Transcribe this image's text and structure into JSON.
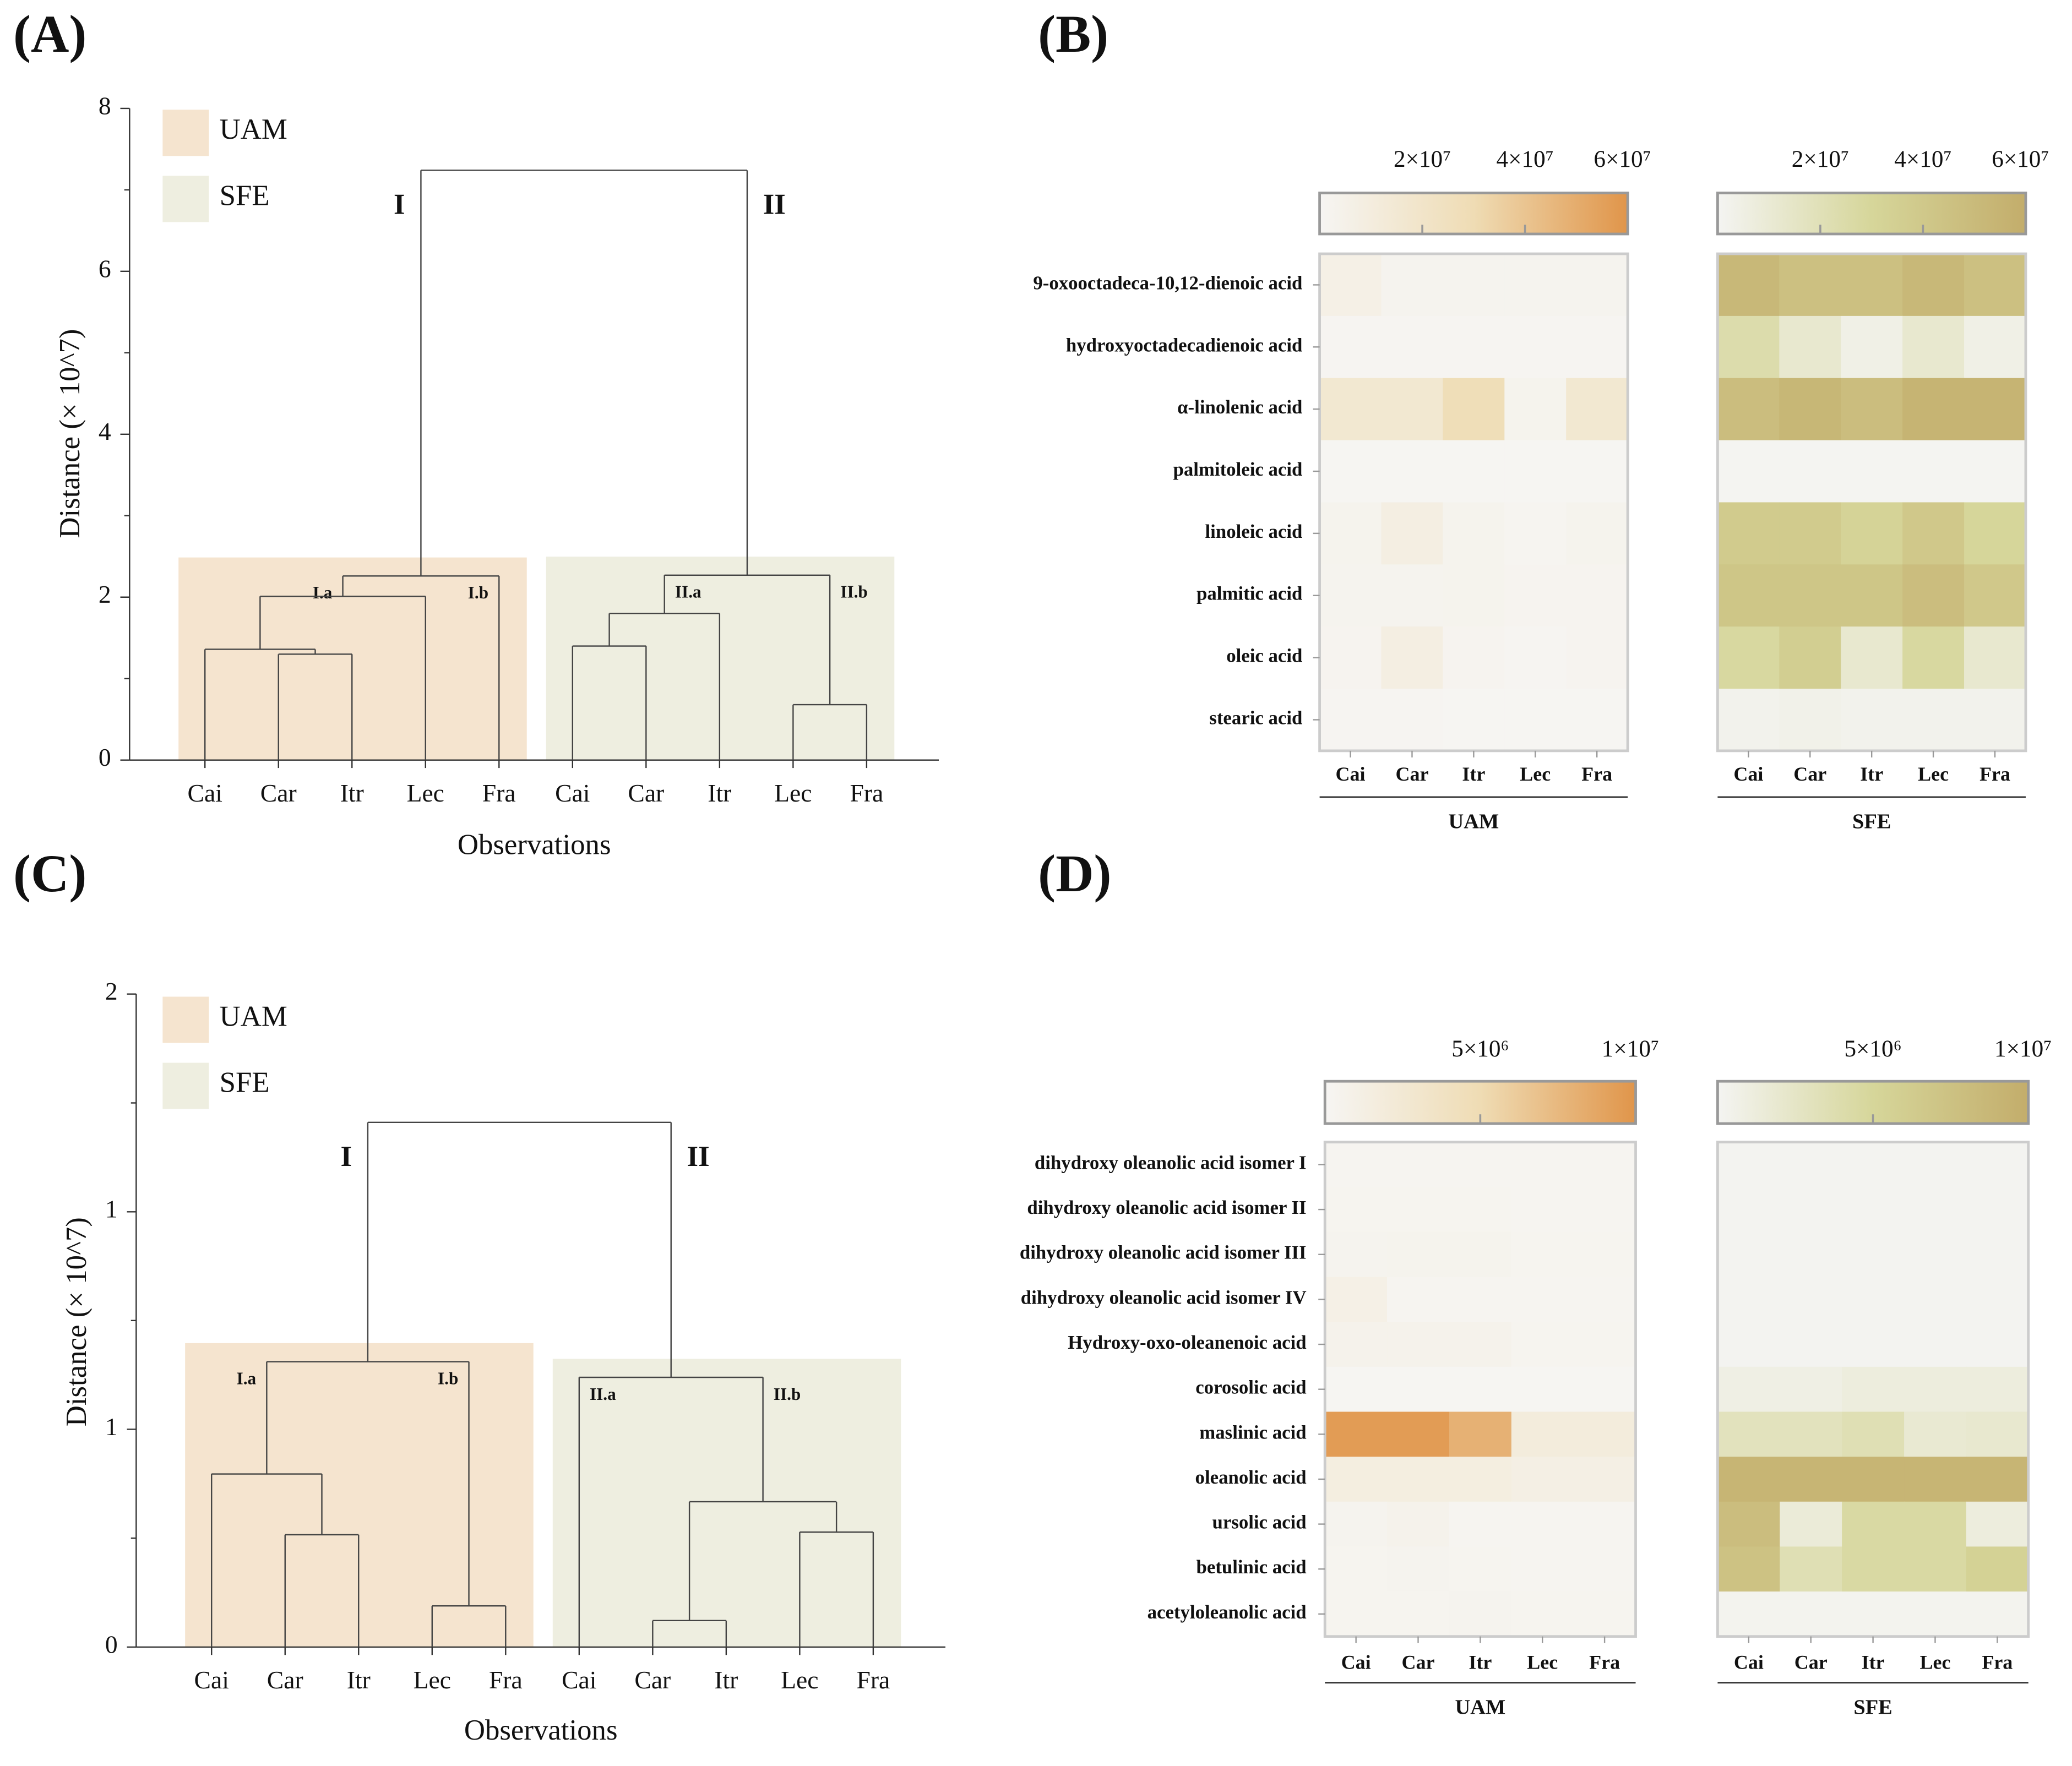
{
  "chart_data": [
    {
      "type": "dendrogram",
      "panel": "(A)",
      "ylabel": "Distance (× 10^7)",
      "xlabel": "Observations",
      "ylim": [
        0,
        8
      ],
      "yticks": [
        0,
        2,
        4,
        6,
        8
      ],
      "categories": [
        "Cai",
        "Car",
        "Itr",
        "Lec",
        "Fra",
        "Cai",
        "Car",
        "Itr",
        "Lec",
        "Fra"
      ],
      "groups": [
        {
          "name": "UAM",
          "color": "#f5e4cf"
        },
        {
          "name": "SFE",
          "color": "#eeeee0"
        }
      ],
      "tree": {
        "height": 7.24,
        "children": [
          {
            "label": "I",
            "height": 2.26,
            "children": [
              {
                "label": "I.a",
                "height": 2.01,
                "children": [
                  {
                    "height": 1.36,
                    "children": [
                      0,
                      {
                        "height": 1.3,
                        "children": [
                          1,
                          2
                        ]
                      }
                    ]
                  },
                  3
                ]
              },
              {
                "leaf": 4,
                "label": "I.b"
              }
            ]
          },
          {
            "label": "II",
            "height": 2.27,
            "children": [
              {
                "label": "II.a",
                "height": 1.8,
                "children": [
                  {
                    "height": 1.4,
                    "children": [
                      5,
                      6
                    ]
                  },
                  7
                ]
              },
              {
                "label": "II.b",
                "height": 0.68,
                "children": [
                  8,
                  9
                ]
              }
            ]
          }
        ]
      }
    },
    {
      "type": "heatmap",
      "panel": "(B)",
      "rows": [
        "9-oxooctadeca-10,12-dienoic acid",
        "hydroxyoctadecadienoic acid",
        "α-linolenic acid",
        "palmitoleic acid",
        "linoleic acid",
        "palmitic acid",
        "oleic acid",
        "stearic acid"
      ],
      "columns": [
        "Cai",
        "Car",
        "Itr",
        "Lec",
        "Fra"
      ],
      "clim": [
        0,
        60000000
      ],
      "cticks": [
        {
          "value": 20000000,
          "label": "2×10⁷"
        },
        {
          "value": 40000000,
          "label": "4×10⁷"
        },
        {
          "value": 60000000,
          "label": "6×10⁷"
        }
      ],
      "maps": [
        {
          "name": "UAM",
          "colors": [
            "#f6f5f3",
            "#efdcb4",
            "#e0954a"
          ],
          "values": [
            [
              6000000,
              2500000,
              2500000,
              2500000,
              2500000
            ],
            [
              1000000,
              1000000,
              1000000,
              1000000,
              1000000
            ],
            [
              16000000,
              16000000,
              28000000,
              3000000,
              16000000
            ],
            [
              500000,
              500000,
              500000,
              500000,
              500000
            ],
            [
              3000000,
              8000000,
              3000000,
              1500000,
              3000000
            ],
            [
              2500000,
              2500000,
              3000000,
              2000000,
              2000000
            ],
            [
              2000000,
              8000000,
              2000000,
              1000000,
              2000000
            ],
            [
              1000000,
              1000000,
              500000,
              500000,
              500000
            ]
          ]
        },
        {
          "name": "SFE",
          "colors": [
            "#f4f4f2",
            "#d6d69a",
            "#c3ad6b"
          ],
          "values": [
            [
              52000000,
              46000000,
              46000000,
              52000000,
              46000000
            ],
            [
              24000000,
              12000000,
              4000000,
              12000000,
              4000000
            ],
            [
              48000000,
              53000000,
              48000000,
              55000000,
              55000000
            ],
            [
              500000,
              500000,
              500000,
              500000,
              500000
            ],
            [
              38000000,
              38000000,
              32000000,
              40000000,
              30000000
            ],
            [
              42000000,
              42000000,
              42000000,
              48000000,
              40000000
            ],
            [
              28000000,
              36000000,
              12000000,
              28000000,
              12000000
            ],
            [
              2000000,
              3000000,
              2000000,
              2000000,
              2000000
            ]
          ]
        }
      ]
    },
    {
      "type": "dendrogram",
      "panel": "(C)",
      "ylabel": "Distance (× 10^7)",
      "xlabel": "Observations",
      "ylim": [
        0,
        2
      ],
      "yticks": [
        0,
        {
          "value": 0.667,
          "label": "1"
        },
        {
          "value": 1.333,
          "label": "1"
        },
        2
      ],
      "categories": [
        "Cai",
        "Car",
        "Itr",
        "Lec",
        "Fra",
        "Cai",
        "Car",
        "Itr",
        "Lec",
        "Fra"
      ],
      "groups": [
        {
          "name": "UAM",
          "color": "#f5e4cf"
        },
        {
          "name": "SFE",
          "color": "#eeeee0"
        }
      ],
      "tree": {
        "height": 1.607,
        "children": [
          {
            "label": "I",
            "height": 0.874,
            "children": [
              {
                "label": "I.a",
                "height": 0.53,
                "children": [
                  0,
                  {
                    "height": 0.344,
                    "children": [
                      1,
                      2
                    ]
                  }
                ]
              },
              {
                "label": "I.b",
                "height": 0.126,
                "children": [
                  3,
                  4
                ]
              }
            ]
          },
          {
            "label": "II",
            "height": 0.826,
            "children": [
              {
                "leaf": 5,
                "label": "II.a"
              },
              {
                "label": "II.b",
                "height": 0.445,
                "children": [
                  {
                    "height": 0.081,
                    "children": [
                      6,
                      7
                    ]
                  },
                  {
                    "height": 0.352,
                    "children": [
                      8,
                      9
                    ]
                  }
                ]
              }
            ]
          }
        ]
      }
    },
    {
      "type": "heatmap",
      "panel": "(D)",
      "rows": [
        "dihydroxy oleanolic acid isomer I",
        "dihydroxy oleanolic acid isomer II",
        "dihydroxy oleanolic acid isomer III",
        "dihydroxy oleanolic acid isomer IV",
        "Hydroxy-oxo-oleanenoic acid",
        "corosolic acid",
        "maslinic acid",
        "oleanolic acid",
        "ursolic acid",
        "betulinic acid",
        "acetyloleanolic acid"
      ],
      "columns": [
        "Cai",
        "Car",
        "Itr",
        "Lec",
        "Fra"
      ],
      "clim": [
        0,
        10000000
      ],
      "cticks": [
        {
          "value": 5000000,
          "label": "5×10⁶"
        },
        {
          "value": 10000000,
          "label": "1×10⁷"
        }
      ],
      "maps": [
        {
          "name": "UAM",
          "colors": [
            "#f6f5f3",
            "#efdcb4",
            "#e0954a"
          ],
          "values": [
            [
              200000,
              200000,
              200000,
              200000,
              200000
            ],
            [
              300000,
              300000,
              300000,
              200000,
              200000
            ],
            [
              400000,
              500000,
              500000,
              300000,
              300000
            ],
            [
              1000000,
              200000,
              200000,
              200000,
              200000
            ],
            [
              600000,
              600000,
              600000,
              300000,
              300000
            ],
            [
              100000,
              100000,
              100000,
              100000,
              100000
            ],
            [
              9500000,
              9500000,
              8000000,
              1800000,
              1800000
            ],
            [
              1500000,
              1500000,
              1500000,
              1200000,
              1200000
            ],
            [
              400000,
              600000,
              200000,
              200000,
              200000
            ],
            [
              300000,
              400000,
              300000,
              200000,
              200000
            ],
            [
              300000,
              300000,
              400000,
              300000,
              300000
            ]
          ]
        },
        {
          "name": "SFE",
          "colors": [
            "#f4f4f2",
            "#d6d69a",
            "#c3ad6b"
          ],
          "values": [
            [
              100000,
              100000,
              100000,
              100000,
              100000
            ],
            [
              100000,
              100000,
              100000,
              100000,
              100000
            ],
            [
              100000,
              100000,
              100000,
              100000,
              100000
            ],
            [
              100000,
              100000,
              100000,
              100000,
              100000
            ],
            [
              100000,
              100000,
              100000,
              100000,
              100000
            ],
            [
              800000,
              800000,
              1200000,
              1200000,
              1200000
            ],
            [
              3000000,
              3000000,
              3500000,
              1800000,
              2000000
            ],
            [
              9000000,
              9000000,
              9000000,
              9000000,
              9000000
            ],
            [
              8000000,
              1500000,
              4500000,
              4500000,
              1200000
            ],
            [
              7500000,
              3500000,
              4500000,
              4500000,
              5500000
            ],
            [
              200000,
              200000,
              200000,
              200000,
              200000
            ]
          ]
        }
      ]
    }
  ]
}
